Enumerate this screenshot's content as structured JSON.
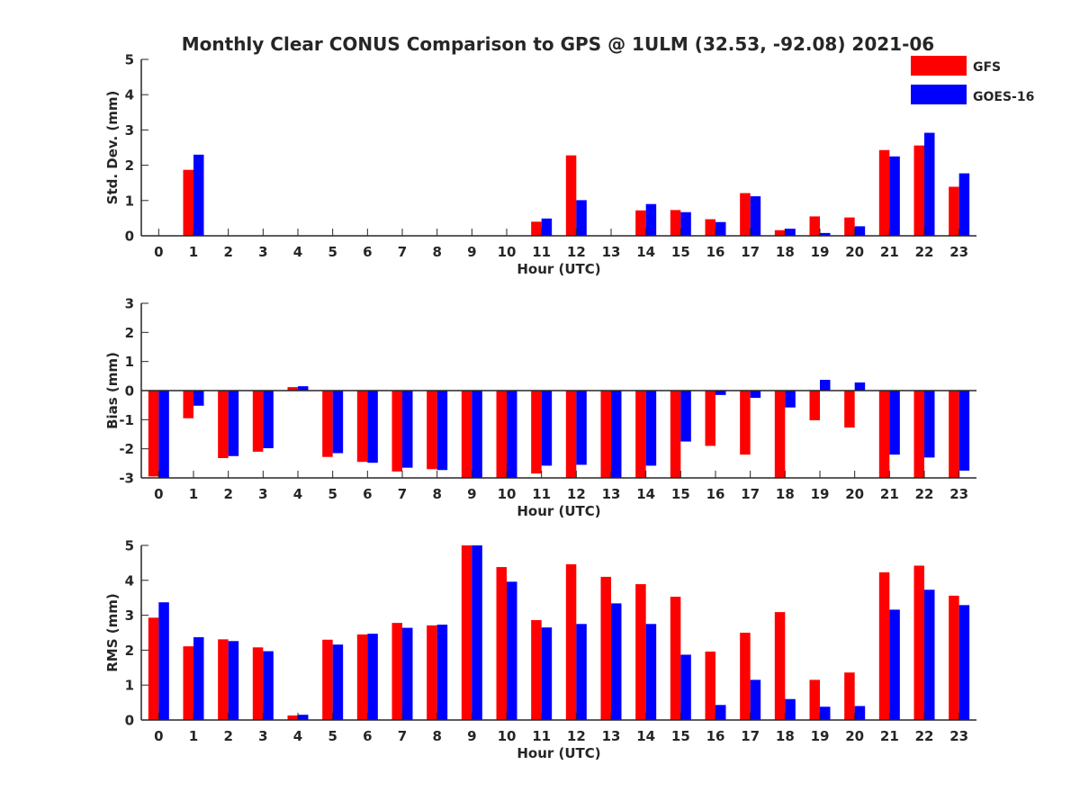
{
  "title": "Monthly Clear CONUS Comparison to GPS @ 1ULM (32.53, -92.08) 2021-06",
  "colors": {
    "GFS": "#ff0000",
    "GOES-16": "#0000ff",
    "axis": "#262626"
  },
  "legend": {
    "placement": "top-right",
    "items": [
      "GFS",
      "GOES-16"
    ]
  },
  "chart_data": [
    {
      "type": "bar",
      "ylabel": "Std. Dev. (mm)",
      "xlabel": "Hour (UTC)",
      "ylim": [
        0,
        5
      ],
      "yticks": [
        "0",
        "1",
        "2",
        "3",
        "4",
        "5"
      ],
      "categories": [
        "0",
        "1",
        "2",
        "3",
        "4",
        "5",
        "6",
        "7",
        "8",
        "9",
        "10",
        "11",
        "12",
        "13",
        "14",
        "15",
        "16",
        "17",
        "18",
        "19",
        "20",
        "21",
        "22",
        "23"
      ],
      "series": [
        {
          "name": "GFS",
          "values": [
            0,
            1.87,
            0,
            0,
            0,
            0,
            0,
            0,
            0,
            0,
            0,
            0.4,
            2.28,
            0,
            0.72,
            0.73,
            0.47,
            1.21,
            0.16,
            0.55,
            0.52,
            2.43,
            2.56,
            1.39
          ]
        },
        {
          "name": "GOES-16",
          "values": [
            0,
            2.3,
            0,
            0,
            0,
            0,
            0,
            0,
            0,
            0,
            0,
            0.49,
            1.01,
            0,
            0.9,
            0.67,
            0.39,
            1.12,
            0.2,
            0.08,
            0.27,
            2.25,
            2.92,
            1.77
          ]
        }
      ]
    },
    {
      "type": "bar",
      "ylabel": "Bias (mm)",
      "xlabel": "Hour (UTC)",
      "ylim": [
        -3,
        3
      ],
      "yticks": [
        "-3",
        "-2",
        "-1",
        "0",
        "1",
        "2",
        "3"
      ],
      "categories": [
        "0",
        "1",
        "2",
        "3",
        "4",
        "5",
        "6",
        "7",
        "8",
        "9",
        "10",
        "11",
        "12",
        "13",
        "14",
        "15",
        "16",
        "17",
        "18",
        "19",
        "20",
        "21",
        "22",
        "23"
      ],
      "series": [
        {
          "name": "GFS",
          "values": [
            -2.95,
            -0.95,
            -2.32,
            -2.1,
            0.12,
            -2.28,
            -2.45,
            -2.78,
            -2.7,
            -3,
            -3,
            -2.85,
            -3,
            -3,
            -3,
            -3,
            -1.9,
            -2.2,
            -3,
            -1.02,
            -1.27,
            -3,
            -3,
            -3
          ]
        },
        {
          "name": "GOES-16",
          "values": [
            -3,
            -0.52,
            -2.25,
            -1.98,
            0.15,
            -2.15,
            -2.48,
            -2.65,
            -2.73,
            -3,
            -3,
            -2.58,
            -2.55,
            -3,
            -2.58,
            -1.75,
            -0.15,
            -0.25,
            -0.58,
            0.37,
            0.28,
            -2.2,
            -2.3,
            -2.75
          ]
        }
      ]
    },
    {
      "type": "bar",
      "ylabel": "RMS (mm)",
      "xlabel": "Hour (UTC)",
      "ylim": [
        0,
        5
      ],
      "yticks": [
        "0",
        "1",
        "2",
        "3",
        "4",
        "5"
      ],
      "categories": [
        "0",
        "1",
        "2",
        "3",
        "4",
        "5",
        "6",
        "7",
        "8",
        "9",
        "10",
        "11",
        "12",
        "13",
        "14",
        "15",
        "16",
        "17",
        "18",
        "19",
        "20",
        "21",
        "22",
        "23"
      ],
      "series": [
        {
          "name": "GFS",
          "values": [
            2.93,
            2.11,
            2.31,
            2.08,
            0.13,
            2.3,
            2.45,
            2.78,
            2.71,
            5,
            4.38,
            2.86,
            4.46,
            4.1,
            3.89,
            3.53,
            1.96,
            2.5,
            3.09,
            1.15,
            1.36,
            4.23,
            4.42,
            3.56
          ]
        },
        {
          "name": "GOES-16",
          "values": [
            3.37,
            2.37,
            2.26,
            1.97,
            0.15,
            2.16,
            2.47,
            2.64,
            2.73,
            5,
            3.96,
            2.65,
            2.75,
            3.34,
            2.75,
            1.87,
            0.43,
            1.15,
            0.6,
            0.38,
            0.4,
            3.16,
            3.73,
            3.29
          ]
        }
      ]
    }
  ]
}
